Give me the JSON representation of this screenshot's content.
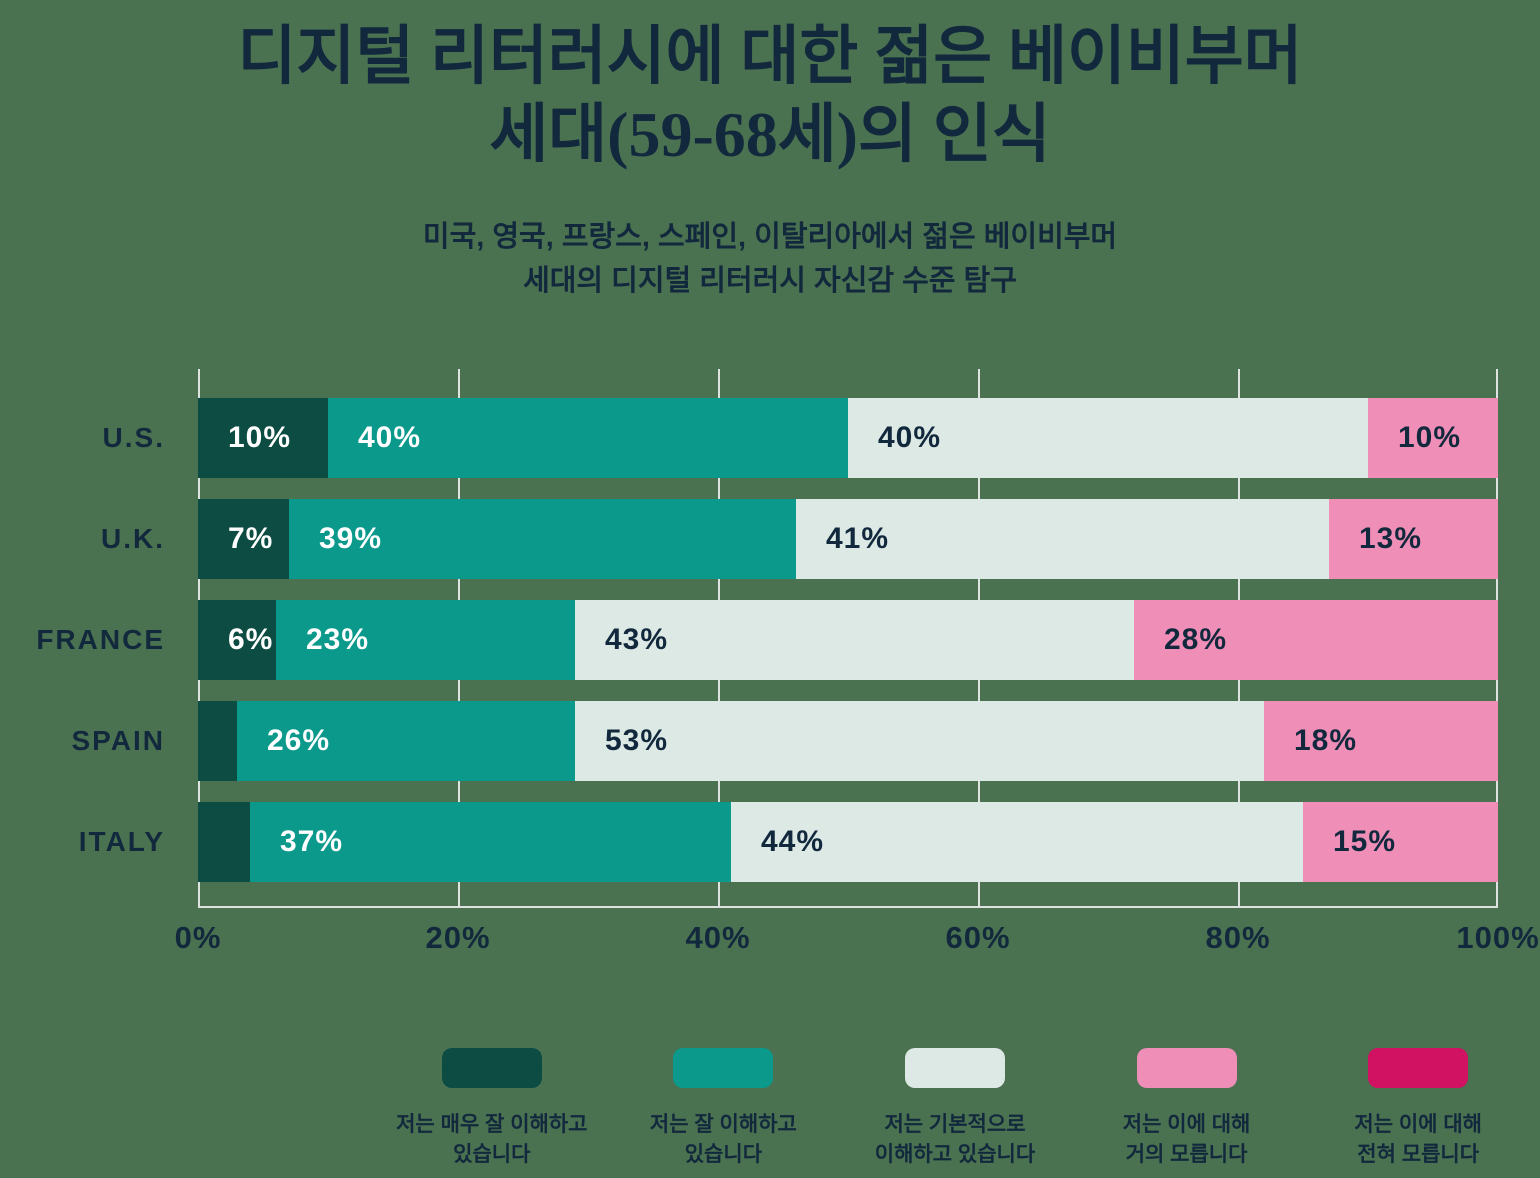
{
  "header": {
    "title_line1": "디지털 리터러시에 대한 젊은 베이비부머",
    "title_line2": "세대(59-68세)의 인식",
    "subtitle_line1": "미국, 영국, 프랑스, 스페인, 이탈리아에서 젊은 베이비부머",
    "subtitle_line2": "세대의 디지털 리터러시 자신감 수준 탐구"
  },
  "colors": {
    "background": "#4a7150",
    "text_navy": "#12293d",
    "gridline": "#dfe3df",
    "segment_dark_green": "#0c4c42",
    "segment_teal": "#0b998c",
    "segment_light": "#dde9e4",
    "segment_pink": "#ef8eb7",
    "segment_magenta": "#d11161"
  },
  "chart_data": {
    "type": "bar",
    "orientation": "horizontal-stacked",
    "title": "디지털 리터러시에 대한 젊은 베이비부머 세대(59-68세)의 인식",
    "subtitle": "미국, 영국, 프랑스, 스페인, 이탈리아에서 젊은 베이비부머 세대의 디지털 리터러시 자신감 수준 탐구",
    "categories": [
      "U.S.",
      "U.K.",
      "FRANCE",
      "SPAIN",
      "ITALY"
    ],
    "series": [
      {
        "name": "저는 매우 잘 이해하고\n있습니다",
        "color": "#0c4c42",
        "label_color": "#ffffff",
        "values": [
          10,
          7,
          6,
          3,
          4
        ]
      },
      {
        "name": "저는 잘 이해하고\n있습니다",
        "color": "#0b998c",
        "label_color": "#ffffff",
        "values": [
          40,
          39,
          23,
          26,
          37
        ]
      },
      {
        "name": "저는 기본적으로\n이해하고 있습니다",
        "color": "#dde9e4",
        "label_color": "#12293d",
        "values": [
          40,
          41,
          43,
          53,
          44
        ]
      },
      {
        "name": "저는 이에 대해\n거의 모릅니다",
        "color": "#ef8eb7",
        "label_color": "#12293d",
        "values": [
          10,
          13,
          28,
          18,
          15
        ]
      },
      {
        "name": "저는 이에 대해\n전혀 모릅니다",
        "color": "#d11161",
        "label_color": "#ffffff",
        "values": [
          0,
          0,
          0,
          0,
          0
        ]
      }
    ],
    "data_label_format": "{value}%",
    "data_label_min_value_shown": 5,
    "x_ticks": [
      "0%",
      "20%",
      "40%",
      "60%",
      "80%",
      "100%"
    ],
    "xlim": [
      0,
      100
    ],
    "grid": "vertical",
    "legend_position": "bottom"
  }
}
